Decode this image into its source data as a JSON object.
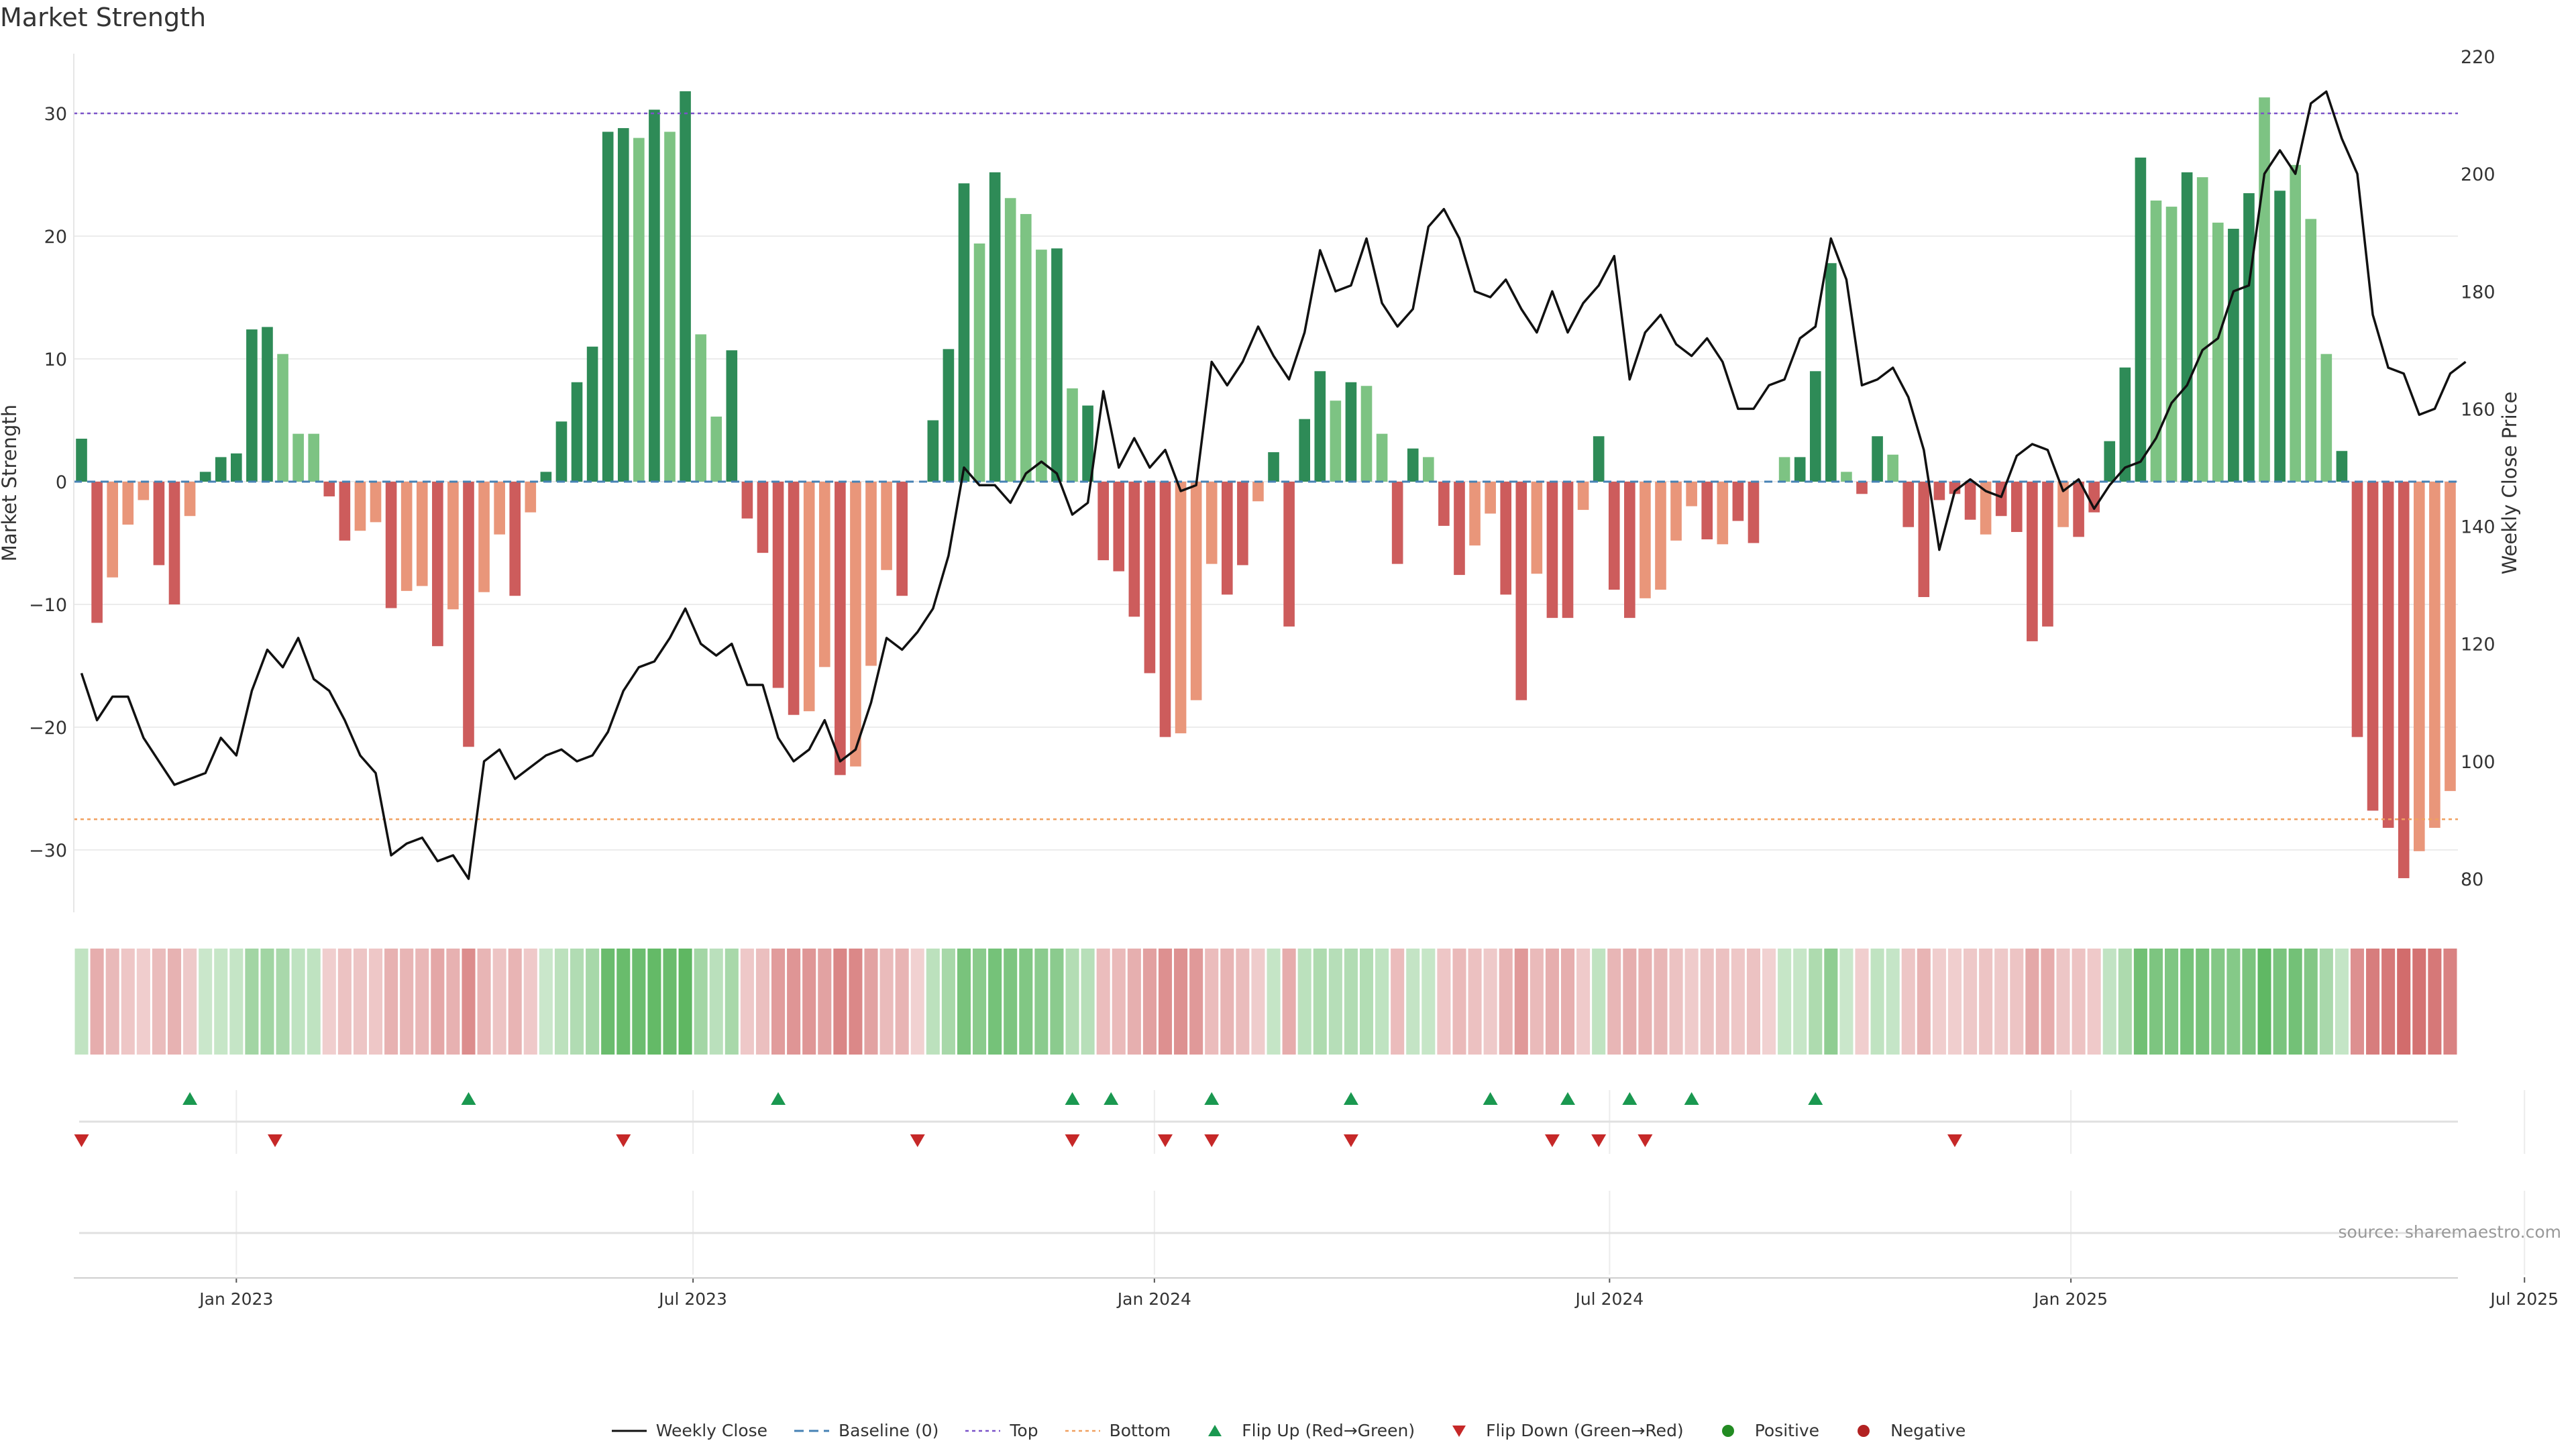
{
  "title": "Market Strength",
  "source": "source: sharemaestro.com",
  "colors": {
    "pos_dark": "#2e8b57",
    "pos_light": "#7dc383",
    "neg_dark": "#cd5c5c",
    "neg_light": "#e9967a",
    "price_line": "#111111",
    "baseline": "#4682b4",
    "top": "#7b52c9",
    "bottom": "#f0a060",
    "flip_up": "#1a9850",
    "flip_down": "#c62828",
    "positive": "#228b22",
    "negative": "#b22222"
  },
  "legend": [
    {
      "label": "Weekly Close",
      "icon": "solid-line-icon"
    },
    {
      "label": "Baseline (0)",
      "icon": "dashed-line-icon"
    },
    {
      "label": "Top",
      "icon": "dotted-line-icon"
    },
    {
      "label": "Bottom",
      "icon": "dotted-line-icon"
    },
    {
      "label": "Flip Up (Red→Green)",
      "icon": "triangle-up-icon"
    },
    {
      "label": "Flip Down (Green→Red)",
      "icon": "triangle-down-icon"
    },
    {
      "label": "Positive",
      "icon": "dot-icon"
    },
    {
      "label": "Negative",
      "icon": "dot-icon"
    }
  ],
  "chart_data": {
    "type": "bar",
    "ylabel": "Market Strength",
    "y2label": "Weekly Close Price",
    "ylim": [
      -35,
      35
    ],
    "y2lim": [
      80,
      220
    ],
    "yticks": [
      -30,
      -20,
      -10,
      0,
      10,
      20,
      30
    ],
    "y2ticks": [
      80,
      100,
      120,
      140,
      160,
      180,
      200,
      220
    ],
    "xtick_labels": [
      "Jan 2023",
      "Jul 2023",
      "Jan 2024",
      "Jul 2024",
      "Jan 2025",
      "Jul 2025"
    ],
    "xtick_weeks": [
      10,
      39.5,
      69.3,
      98.7,
      128.5,
      157.8
    ],
    "top_level": 30,
    "bottom_level": -27.5,
    "grid": true,
    "legend_position": "bottom-center",
    "strength": [
      3.5,
      -11.5,
      -7.8,
      -3.5,
      -1.5,
      -6.8,
      -10,
      -2.8,
      0.8,
      2,
      2.3,
      12.4,
      12.6,
      10.4,
      3.9,
      3.9,
      -1.2,
      -4.8,
      -4,
      -3.3,
      -10.3,
      -8.9,
      -8.5,
      -13.4,
      -10.4,
      -21.6,
      -9,
      -4.3,
      -9.3,
      -2.5,
      0.8,
      4.9,
      8.1,
      11,
      28.5,
      28.8,
      28,
      30.3,
      28.5,
      31.8,
      12,
      5.3,
      10.7,
      -3,
      -5.8,
      -16.8,
      -19,
      -18.7,
      -15.1,
      -23.9,
      -23.2,
      -15,
      -7.2,
      -9.3,
      0,
      5,
      10.8,
      24.3,
      19.4,
      25.2,
      23.1,
      21.8,
      18.9,
      19,
      7.6,
      6.2,
      -6.4,
      -7.3,
      -11,
      -15.6,
      -20.8,
      -20.5,
      -17.8,
      -6.7,
      -9.2,
      -6.8,
      -1.6,
      2.4,
      -11.8,
      5.1,
      9,
      6.6,
      8.1,
      7.8,
      3.9,
      -6.7,
      2.7,
      2,
      -3.6,
      -7.6,
      -5.2,
      -2.6,
      -9.2,
      -17.8,
      -7.5,
      -11.1,
      -11.1,
      -2.3,
      3.7,
      -8.8,
      -11.1,
      -9.5,
      -8.8,
      -4.8,
      -2,
      -4.7,
      -5.1,
      -3.2,
      -5,
      0,
      2,
      2,
      9,
      17.8,
      0.8,
      -1,
      3.7,
      2.2,
      -3.7,
      -9.4,
      -1.5,
      -1,
      -3.1,
      -4.3,
      -2.8,
      -4.1,
      -13,
      -11.8,
      -3.7,
      -4.5,
      -2.5,
      3.3,
      9.3,
      26.4,
      22.9,
      22.4,
      25.2,
      24.8,
      21.1,
      20.6,
      23.5,
      31.3,
      23.7,
      25.8,
      21.4,
      10.4,
      2.5,
      -20.8,
      -26.8,
      -28.2,
      -32.3,
      -30.1,
      -28.2,
      -25.2
    ],
    "shade": [
      1,
      1,
      0,
      0,
      0,
      1,
      1,
      0,
      1,
      1,
      1,
      1,
      1,
      0,
      0,
      0,
      1,
      1,
      0,
      0,
      1,
      0,
      0,
      1,
      0,
      1,
      0,
      0,
      1,
      0,
      1,
      1,
      1,
      1,
      1,
      1,
      0,
      1,
      0,
      1,
      0,
      0,
      1,
      1,
      1,
      1,
      1,
      0,
      0,
      1,
      0,
      0,
      0,
      1,
      0,
      1,
      1,
      1,
      0,
      1,
      0,
      0,
      0,
      1,
      0,
      1,
      1,
      1,
      1,
      1,
      1,
      0,
      0,
      0,
      1,
      1,
      0,
      1,
      1,
      1,
      1,
      0,
      1,
      0,
      0,
      1,
      1,
      0,
      1,
      1,
      0,
      0,
      1,
      1,
      0,
      1,
      1,
      0,
      1,
      1,
      1,
      0,
      0,
      0,
      0,
      1,
      0,
      1,
      1,
      1,
      0,
      1,
      1,
      1,
      0,
      1,
      1,
      0,
      1,
      1,
      1,
      1,
      1,
      0,
      1,
      1,
      1,
      1,
      0,
      1,
      1,
      1,
      1,
      1,
      0,
      0,
      1,
      0,
      0,
      1,
      1,
      0,
      1,
      0,
      0,
      0,
      1,
      1,
      1,
      1,
      1,
      0,
      0
    ],
    "weekly_close": [
      115,
      107,
      111,
      111,
      104,
      100,
      96,
      97,
      98,
      104,
      101,
      112,
      119,
      116,
      121,
      114,
      112,
      107,
      101,
      98,
      84,
      86,
      87,
      83,
      84,
      80,
      100,
      102,
      97,
      99,
      101,
      102,
      100,
      101,
      105,
      112,
      116,
      117,
      121,
      126,
      120,
      118,
      120,
      113,
      113,
      104,
      100,
      102,
      107,
      100,
      102,
      110,
      121,
      119,
      122,
      126,
      135,
      150,
      147,
      147,
      144,
      149,
      151,
      149,
      142,
      144,
      163,
      150,
      155,
      150,
      153,
      146,
      147,
      168,
      164,
      168,
      174,
      169,
      165,
      173,
      187,
      180,
      181,
      189,
      178,
      174,
      177,
      191,
      194,
      189,
      180,
      179,
      182,
      177,
      173,
      180,
      173,
      178,
      181,
      186,
      165,
      173,
      176,
      171,
      169,
      172,
      168,
      160,
      160,
      164,
      165,
      172,
      174,
      189,
      182,
      164,
      165,
      167,
      162,
      153,
      136,
      146,
      148,
      146,
      145,
      152,
      154,
      153,
      146,
      148,
      143,
      147,
      150,
      151,
      155,
      161,
      164,
      170,
      172,
      180,
      181,
      200,
      204,
      200,
      212,
      214,
      206,
      200,
      176,
      167,
      166,
      159,
      160,
      166,
      168
    ],
    "flip_up_weeks": [
      7,
      25,
      45,
      64,
      66.5,
      73,
      82,
      91,
      96,
      100,
      104,
      112
    ],
    "flip_down_weeks": [
      0,
      12.5,
      35,
      54,
      64,
      70,
      73,
      82,
      95,
      98,
      101,
      121
    ]
  }
}
